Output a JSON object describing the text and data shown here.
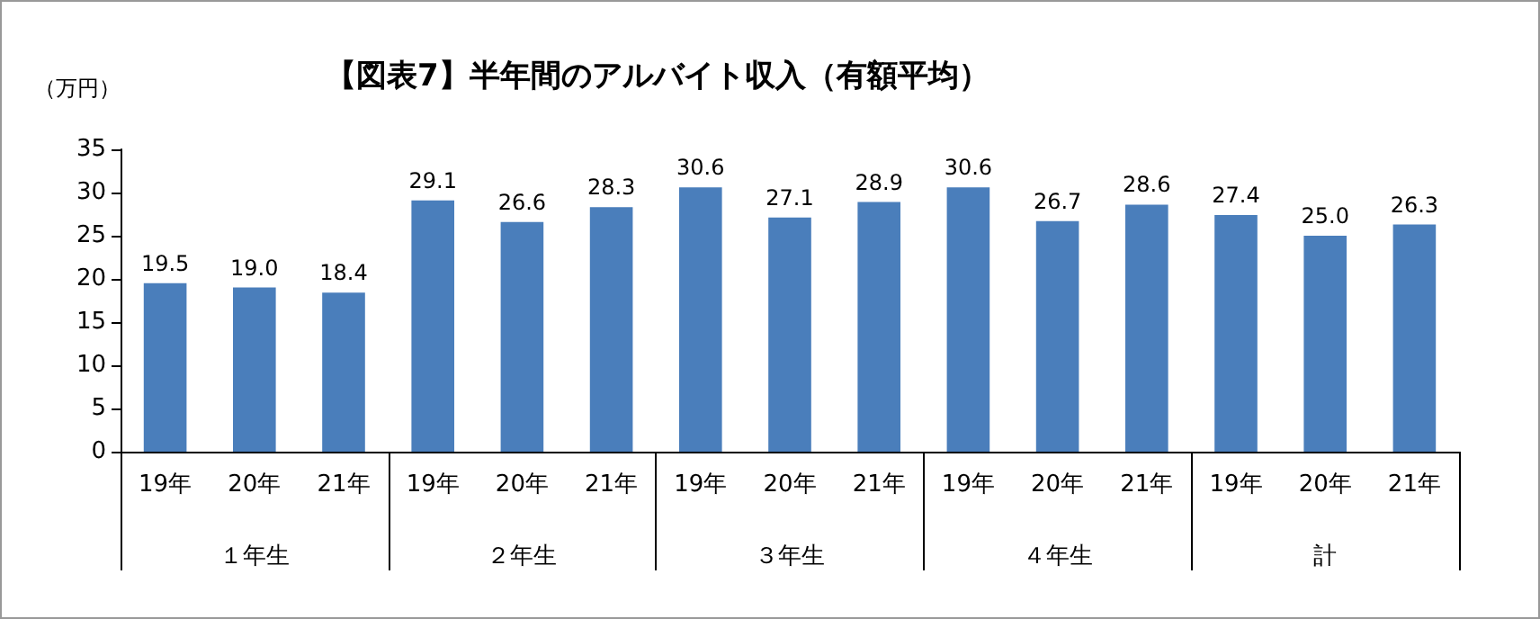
{
  "chart_data": {
    "type": "bar",
    "title": "【図表7】半年間のアルバイト収入（有額平均）",
    "ylabel": "（万円）",
    "categories": [
      "19年",
      "20年",
      "21年",
      "19年",
      "20年",
      "21年",
      "19年",
      "20年",
      "21年",
      "19年",
      "20年",
      "21年",
      "19年",
      "20年",
      "21年"
    ],
    "annotations": [
      "１年生",
      "２年生",
      "３年生",
      "４年生",
      "計"
    ],
    "values": [
      19.5,
      19.0,
      18.4,
      29.1,
      26.6,
      28.3,
      30.6,
      27.1,
      28.9,
      30.6,
      26.7,
      28.6,
      27.4,
      25.0,
      26.3
    ],
    "value_labels": [
      "19.5",
      "19.0",
      "18.4",
      "29.1",
      "26.6",
      "28.3",
      "30.6",
      "27.1",
      "28.9",
      "30.6",
      "26.7",
      "28.6",
      "27.4",
      "25.0",
      "26.3"
    ],
    "color": "#4a7ebb",
    "ylim": [
      0,
      35
    ],
    "yticks": [
      0,
      5,
      10,
      15,
      20,
      25,
      30,
      35
    ],
    "grid": false
  }
}
